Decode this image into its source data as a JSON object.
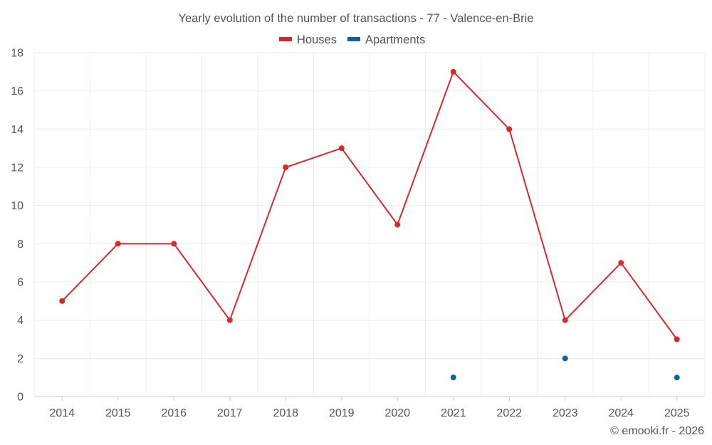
{
  "chart_data": {
    "type": "line",
    "title": "Yearly evolution of the number of transactions - 77 - Valence-en-Brie",
    "categories": [
      "2014",
      "2015",
      "2016",
      "2017",
      "2018",
      "2019",
      "2020",
      "2021",
      "2022",
      "2023",
      "2024",
      "2025"
    ],
    "series": [
      {
        "name": "Houses",
        "color": "#d62a2a",
        "values": [
          5,
          8,
          8,
          4,
          12,
          13,
          9,
          17,
          14,
          4,
          7,
          3
        ]
      },
      {
        "name": "Apartments",
        "color": "#0f62a0",
        "values": [
          null,
          null,
          null,
          null,
          null,
          null,
          null,
          1,
          null,
          2,
          null,
          1
        ]
      }
    ],
    "ylim": [
      0,
      18
    ],
    "yticks": [
      0,
      2,
      4,
      6,
      8,
      10,
      12,
      14,
      16,
      18
    ],
    "grid": true,
    "legend": "top-center",
    "xlabel": "",
    "ylabel": ""
  },
  "credit": "© emooki.fr - 2026"
}
